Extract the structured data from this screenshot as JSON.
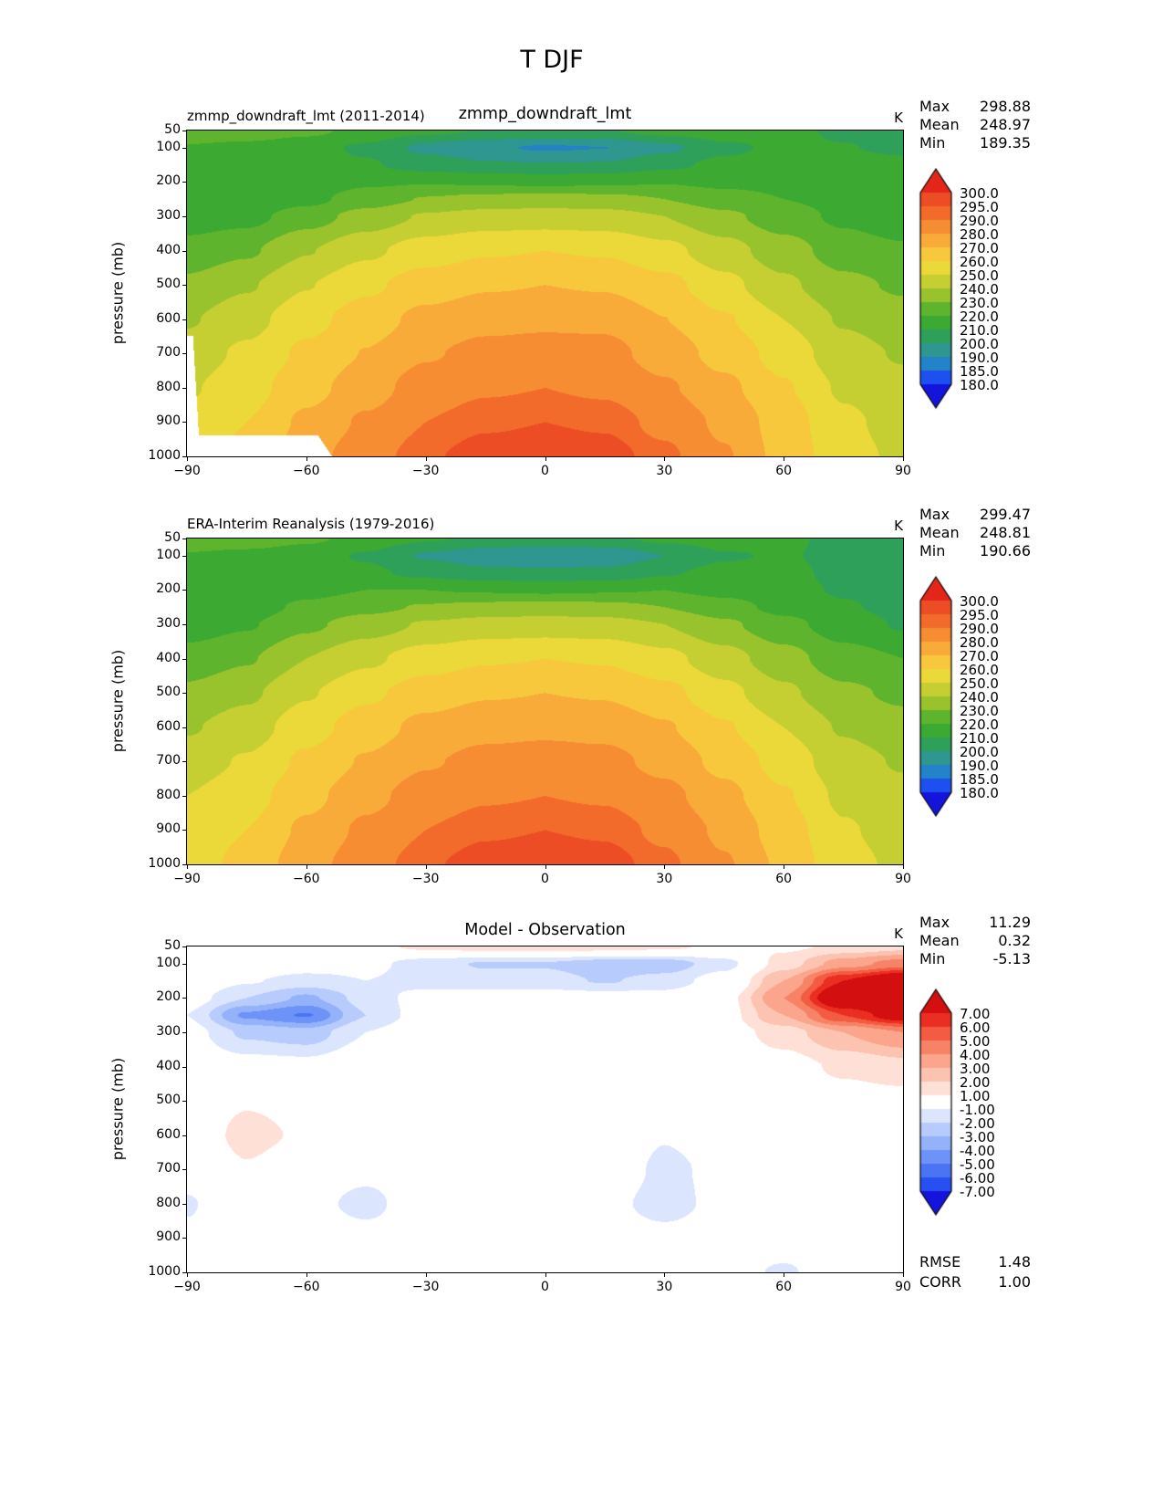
{
  "figure": {
    "title": "T DJF"
  },
  "axes": {
    "ylabel": "pressure (mb)",
    "xlim": [
      -90,
      90
    ],
    "ylim": [
      50,
      1000
    ],
    "xticks": [
      -90,
      -60,
      -30,
      0,
      30,
      60,
      90
    ],
    "xtick_labels": [
      "−90",
      "−60",
      "−30",
      "0",
      "30",
      "60",
      "90"
    ],
    "yticks": [
      50,
      100,
      200,
      300,
      400,
      500,
      600,
      700,
      800,
      900,
      1000
    ]
  },
  "panels": [
    {
      "left_title": "zmmp_downdraft_lmt (2011-2014)",
      "center_title": "zmmp_downdraft_lmt",
      "unit": "K",
      "stats": [
        {
          "label": "Max",
          "value": "298.88"
        },
        {
          "label": "Mean",
          "value": "248.97"
        },
        {
          "label": "Min",
          "value": "189.35"
        }
      ]
    },
    {
      "left_title": "ERA-Interim Reanalysis (1979-2016)",
      "center_title": "",
      "unit": "K",
      "stats": [
        {
          "label": "Max",
          "value": "299.47"
        },
        {
          "label": "Mean",
          "value": "248.81"
        },
        {
          "label": "Min",
          "value": "190.66"
        }
      ]
    },
    {
      "left_title": "",
      "center_title": "Model - Observation",
      "unit": "K",
      "stats": [
        {
          "label": "Max",
          "value": "11.29"
        },
        {
          "label": "Mean",
          "value": "0.32"
        },
        {
          "label": "Min",
          "value": "-5.13"
        }
      ],
      "extra_stats": [
        {
          "label": "RMSE",
          "value": "1.48"
        },
        {
          "label": "CORR",
          "value": "1.00"
        }
      ]
    }
  ],
  "colorbars": {
    "temperature": {
      "levels": [
        180,
        185,
        190,
        200,
        210,
        220,
        230,
        240,
        250,
        260,
        270,
        280,
        290,
        295,
        300
      ],
      "tick_labels": [
        "300.0",
        "295.0",
        "290.0",
        "280.0",
        "270.0",
        "260.0",
        "250.0",
        "240.0",
        "230.0",
        "220.0",
        "210.0",
        "200.0",
        "190.0",
        "185.0",
        "180.0"
      ],
      "colors": [
        "#1414dc",
        "#1e50f0",
        "#2382c8",
        "#2f9690",
        "#2fa05a",
        "#3caa32",
        "#5fb42d",
        "#99c32d",
        "#c6cf32",
        "#ebd839",
        "#f7c83c",
        "#f9ab3a",
        "#f78d33",
        "#f26b2b",
        "#ec4d24",
        "#e32619"
      ]
    },
    "difference": {
      "levels": [
        -7,
        -6,
        -5,
        -4,
        -3,
        -2,
        -1,
        1,
        2,
        3,
        4,
        5,
        6,
        7
      ],
      "tick_labels": [
        "7.00",
        "6.00",
        "5.00",
        "4.00",
        "3.00",
        "2.00",
        "1.00",
        "-1.00",
        "-2.00",
        "-3.00",
        "-4.00",
        "-5.00",
        "-6.00",
        "-7.00"
      ],
      "colors": [
        "#1414dc",
        "#2850f0",
        "#4b74f5",
        "#6e93f8",
        "#93b2fa",
        "#b7ccfc",
        "#dbe5fe",
        "#ffffff",
        "#fee0d6",
        "#fcc3b1",
        "#faa58c",
        "#f78367",
        "#f35b42",
        "#ea2e21",
        "#d40f0f"
      ]
    }
  },
  "surface_mask": {
    "lats": [
      -90,
      -88.5,
      -87,
      -57,
      -53
    ],
    "ps": [
      650,
      650,
      940,
      940,
      1010
    ]
  },
  "chart_data": [
    {
      "type": "heatmap",
      "title": "zmmp_downdraft_lmt (2011-2014)",
      "xlabel": "latitude",
      "ylabel": "pressure (mb)",
      "colorbar": "temperature",
      "masked_below_surface": true,
      "x": [
        -90,
        -75,
        -60,
        -45,
        -30,
        -15,
        0,
        15,
        30,
        45,
        60,
        75,
        90
      ],
      "y": [
        50,
        100,
        150,
        200,
        250,
        300,
        400,
        500,
        600,
        700,
        800,
        900,
        1000
      ],
      "values": [
        [
          228.3,
          226.4,
          222.5,
          216.6,
          212.3,
          209.6,
          208.6,
          209.6,
          213.3,
          215.6,
          212.8,
          208.2,
          204.6
        ],
        [
          219,
          217,
          213.6,
          208.4,
          197.4,
          191.4,
          188.9,
          189.9,
          197.4,
          207.6,
          212.5,
          210.5,
          207.5
        ],
        [
          213,
          212.1,
          212.6,
          211,
          205.5,
          201.4,
          200.4,
          200.9,
          207.4,
          212.6,
          215,
          215,
          213
        ],
        [
          210.6,
          210,
          213.8,
          218.4,
          219.5,
          218.6,
          217.6,
          218.6,
          219.5,
          217.5,
          217,
          218,
          216.2
        ],
        [
          211,
          210.8,
          216.9,
          225,
          230.6,
          233,
          234,
          233,
          230,
          224.5,
          220,
          217,
          215
        ],
        [
          214.5,
          216.8,
          225.4,
          234,
          241,
          244,
          245,
          244,
          240,
          232.4,
          224.5,
          218,
          213
        ],
        [
          224,
          228.5,
          239.4,
          248,
          255,
          259,
          260,
          259,
          253,
          244,
          234.5,
          225.2,
          221.6
        ],
        [
          232,
          238.9,
          249.5,
          258,
          265,
          269,
          270,
          269,
          263.3,
          253,
          242,
          232.5,
          228.6
        ],
        [
          239,
          246.4,
          256.8,
          265,
          273,
          277,
          278,
          277.6,
          270.1,
          261,
          250,
          239,
          234.2
        ],
        [
          244.5,
          251.9,
          262,
          270.4,
          279,
          283,
          284,
          283.4,
          275.6,
          266.5,
          256,
          244,
          239
        ],
        [
          248.9,
          256,
          266.5,
          275.6,
          285,
          289,
          290,
          288.5,
          281.4,
          272.5,
          261,
          248.6,
          243
        ],
        [
          252.2,
          260,
          272,
          281.5,
          290,
          294,
          295,
          294,
          287.5,
          278,
          265.4,
          251.9,
          246.2
        ],
        [
          255,
          263,
          276,
          286,
          294,
          298,
          299.4,
          298,
          292,
          281,
          266.7,
          253.6,
          248
        ]
      ],
      "stats": {
        "max": 298.88,
        "mean": 248.97,
        "min": 189.35
      }
    },
    {
      "type": "heatmap",
      "title": "ERA-Interim Reanalysis (1979-2016)",
      "xlabel": "latitude",
      "ylabel": "pressure (mb)",
      "colorbar": "temperature",
      "masked_below_surface": false,
      "x": [
        -90,
        -75,
        -60,
        -45,
        -30,
        -15,
        0,
        15,
        30,
        45,
        60,
        75,
        90
      ],
      "y": [
        50,
        100,
        150,
        200,
        250,
        300,
        400,
        500,
        600,
        700,
        800,
        900,
        1000
      ],
      "values": [
        [
          228,
          226,
          222,
          216,
          211,
          208,
          207,
          208,
          212,
          215,
          212,
          207,
          203
        ],
        [
          219,
          217,
          214,
          209,
          199,
          193.5,
          191,
          192.5,
          200,
          209,
          211,
          207,
          203
        ],
        [
          213,
          213,
          214,
          212,
          207,
          203,
          202,
          203,
          209,
          213,
          212,
          208,
          204
        ],
        [
          211,
          212,
          217,
          220,
          220,
          219,
          218,
          219,
          220,
          217,
          213,
          209,
          205
        ],
        [
          212,
          215,
          222,
          227,
          231,
          233,
          234,
          233,
          230,
          224,
          217,
          211,
          207
        ],
        [
          215,
          219,
          228,
          235,
          241,
          244,
          245,
          244,
          240,
          232,
          223,
          215,
          209
        ],
        [
          224,
          229,
          240,
          248,
          255,
          259,
          260,
          259,
          253,
          244,
          234,
          224,
          220
        ],
        [
          232,
          238,
          249,
          258,
          265,
          269,
          270,
          269,
          263,
          253,
          242,
          232,
          228
        ],
        [
          239,
          245,
          256,
          265,
          273,
          277,
          278,
          277,
          271,
          261,
          250,
          239,
          234
        ],
        [
          245,
          251,
          262,
          271,
          279,
          283,
          284,
          283,
          277,
          267,
          256,
          244,
          239
        ],
        [
          250,
          256,
          267,
          277,
          285,
          289,
          290,
          289,
          283,
          273,
          261,
          248,
          243
        ],
        [
          253,
          260,
          272,
          282,
          290,
          294,
          295,
          294,
          288,
          278,
          265,
          251,
          246
        ],
        [
          255,
          263,
          276,
          286,
          294,
          298,
          299.4,
          298,
          292,
          281,
          268,
          253,
          248
        ]
      ],
      "stats": {
        "max": 299.47,
        "mean": 248.81,
        "min": 190.66
      }
    },
    {
      "type": "heatmap",
      "title": "Model - Observation",
      "xlabel": "latitude",
      "ylabel": "pressure (mb)",
      "colorbar": "difference",
      "masked_below_surface": false,
      "x": [
        -90,
        -75,
        -60,
        -45,
        -30,
        -15,
        0,
        15,
        30,
        45,
        60,
        75,
        90
      ],
      "y": [
        50,
        100,
        150,
        200,
        250,
        300,
        400,
        500,
        600,
        700,
        800,
        900,
        1000
      ],
      "values": [
        [
          0.3,
          0.4,
          0.5,
          0.6,
          1.3,
          1.6,
          1.6,
          1.6,
          1.3,
          0.6,
          0.8,
          1.2,
          1.6
        ],
        [
          0,
          0,
          -0.4,
          -0.6,
          -1.6,
          -2.1,
          -2.1,
          -2.6,
          -2.6,
          -1.4,
          1.5,
          3.5,
          4.5
        ],
        [
          0,
          -0.9,
          -1.4,
          -1,
          -1.5,
          -1.6,
          -1.6,
          -2.1,
          -1.6,
          -0.4,
          3,
          7,
          9
        ],
        [
          -0.4,
          -2,
          -3.2,
          -1.6,
          -0.5,
          -0.4,
          -0.4,
          -0.4,
          -0.5,
          0.5,
          4,
          9,
          11.2
        ],
        [
          -1,
          -4.2,
          -5.1,
          -2,
          -0.4,
          0,
          0,
          0,
          0,
          0.5,
          3,
          6,
          8
        ],
        [
          -0.5,
          -2.2,
          -2.6,
          -1,
          0,
          0,
          0,
          0,
          0,
          0.4,
          1.5,
          3,
          4
        ],
        [
          0,
          -0.5,
          -0.6,
          0,
          0,
          0,
          0,
          0,
          0,
          0,
          0.5,
          1.2,
          1.6
        ],
        [
          0,
          0.9,
          0.5,
          0,
          0,
          0,
          0,
          0,
          0.3,
          0,
          0,
          0.5,
          0.6
        ],
        [
          0,
          1.4,
          0.8,
          0,
          0,
          0,
          0,
          0.6,
          -0.9,
          0,
          0,
          0,
          0.2
        ],
        [
          -0.5,
          0.9,
          0,
          -0.6,
          0,
          0,
          0,
          0.4,
          -1.4,
          -0.5,
          0,
          0,
          0
        ],
        [
          -1.1,
          0,
          -0.5,
          -1.4,
          0,
          0,
          0,
          -0.5,
          -1.6,
          -0.5,
          0,
          0.6,
          0
        ],
        [
          -0.8,
          0,
          0,
          -0.5,
          0,
          0,
          0,
          0,
          -0.5,
          0,
          0.4,
          0.9,
          0.2
        ],
        [
          0,
          0,
          0,
          0,
          0,
          0,
          0,
          0,
          0,
          0,
          -1.3,
          0.6,
          0
        ]
      ],
      "stats": {
        "max": 11.29,
        "mean": 0.32,
        "min": -5.13,
        "rmse": 1.48,
        "corr": 1.0
      }
    }
  ]
}
